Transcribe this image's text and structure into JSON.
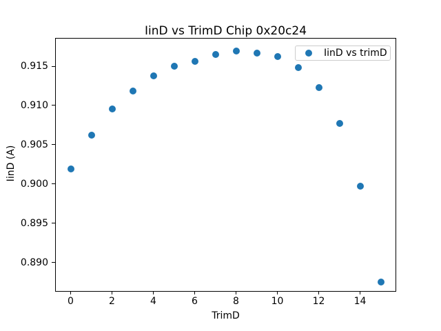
{
  "chart_data": {
    "type": "scatter",
    "title": "IinD vs TrimD Chip 0x20c24",
    "xlabel": "TrimD",
    "ylabel": "IinD (A)",
    "legend_position": "upper right",
    "grid": false,
    "background_color": "#ffffff",
    "spine_color": "#000000",
    "series": [
      {
        "name": "IinD vs trimD",
        "color": "#1f77b4",
        "x": [
          0,
          1,
          2,
          3,
          4,
          5,
          6,
          7,
          8,
          9,
          10,
          11,
          12,
          13,
          14,
          15
        ],
        "y": [
          0.9019,
          0.9062,
          0.9096,
          0.9118,
          0.9138,
          0.915,
          0.9156,
          0.9165,
          0.9169,
          0.9167,
          0.9162,
          0.9148,
          0.9123,
          0.9077,
          0.8997,
          0.8875
        ]
      }
    ],
    "legend": [
      {
        "label": "IinD vs trimD",
        "marker_color": "#1f77b4"
      }
    ],
    "xlim": [
      -0.75,
      15.75
    ],
    "ylim": [
      0.8863,
      0.9186
    ],
    "xticks": {
      "values": [
        0,
        2,
        4,
        6,
        8,
        10,
        12,
        14
      ],
      "labels": [
        "0",
        "2",
        "4",
        "6",
        "8",
        "10",
        "12",
        "14"
      ]
    },
    "yticks": {
      "values": [
        0.89,
        0.895,
        0.9,
        0.905,
        0.91,
        0.915
      ],
      "labels": [
        "0.890",
        "0.895",
        "0.900",
        "0.905",
        "0.910",
        "0.915"
      ]
    }
  }
}
